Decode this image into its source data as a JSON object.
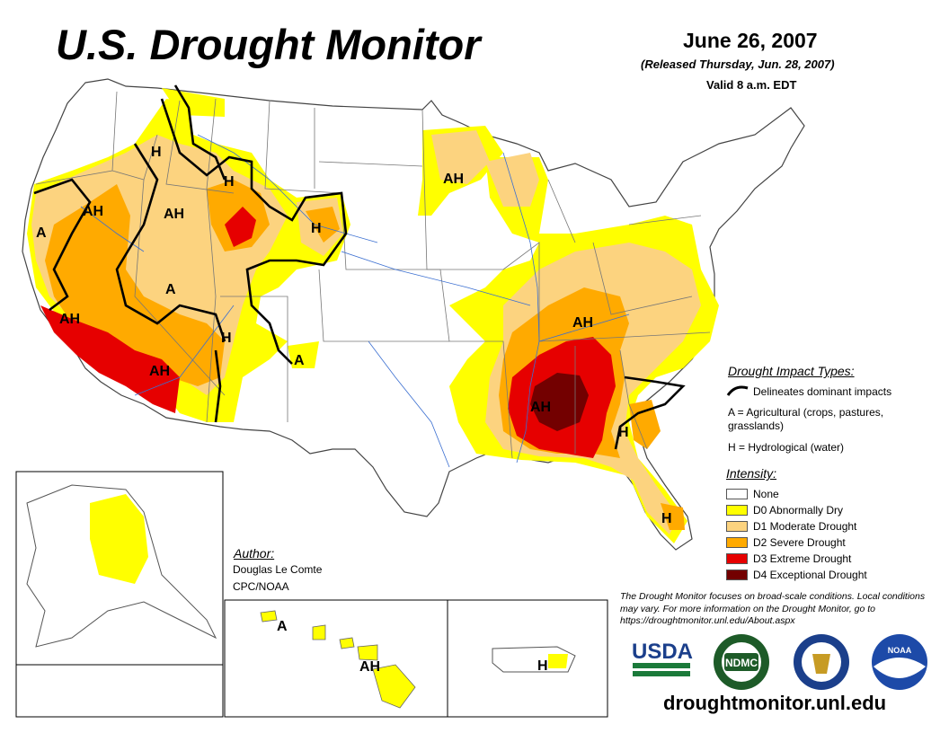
{
  "header": {
    "title": "U.S. Drought Monitor",
    "date": "June 26, 2007",
    "released": "(Released Thursday, Jun. 28, 2007)",
    "valid": "Valid 8 a.m. EDT"
  },
  "impact_legend": {
    "heading": "Drought Impact Types:",
    "line_label": "Delineates dominant impacts",
    "agricultural": "A = Agricultural (crops, pastures, grasslands)",
    "hydrological": "H = Hydrological (water)"
  },
  "intensity_legend": {
    "heading": "Intensity:",
    "items": [
      {
        "label": "None",
        "color": "#ffffff"
      },
      {
        "label": "D0 Abnormally Dry",
        "color": "#ffff00"
      },
      {
        "label": "D1 Moderate Drought",
        "color": "#fcd37f"
      },
      {
        "label": "D2 Severe Drought",
        "color": "#ffaa00"
      },
      {
        "label": "D3 Extreme Drought",
        "color": "#e60000"
      },
      {
        "label": "D4 Exceptional Drought",
        "color": "#730000"
      }
    ]
  },
  "map_labels": {
    "ca_north": "A",
    "or_ah": "AH",
    "mt_h": "H",
    "id_ah": "AH",
    "mt_h2": "H",
    "wy_h": "H",
    "nv_a": "A",
    "ca_ah": "AH",
    "az_ah": "AH",
    "ut_h": "H",
    "nm_a": "A",
    "mn_ah": "AH",
    "ky_ah": "AH",
    "al_ah": "AH",
    "ga_h": "H",
    "fl_h": "H",
    "hi_a": "A",
    "hi_ah": "AH",
    "pr_h": "H"
  },
  "author": {
    "heading": "Author:",
    "name": "Douglas Le Comte",
    "org": "CPC/NOAA"
  },
  "note": "The Drought Monitor focuses on broad-scale conditions. Local conditions may vary. For more information on the Drought Monitor, go to https://droughtmonitor.unl.edu/About.aspx",
  "logos": {
    "usda": "USDA",
    "ndmc": "NDMC",
    "noaa": "NOAA"
  },
  "url": "droughtmonitor.unl.edu"
}
